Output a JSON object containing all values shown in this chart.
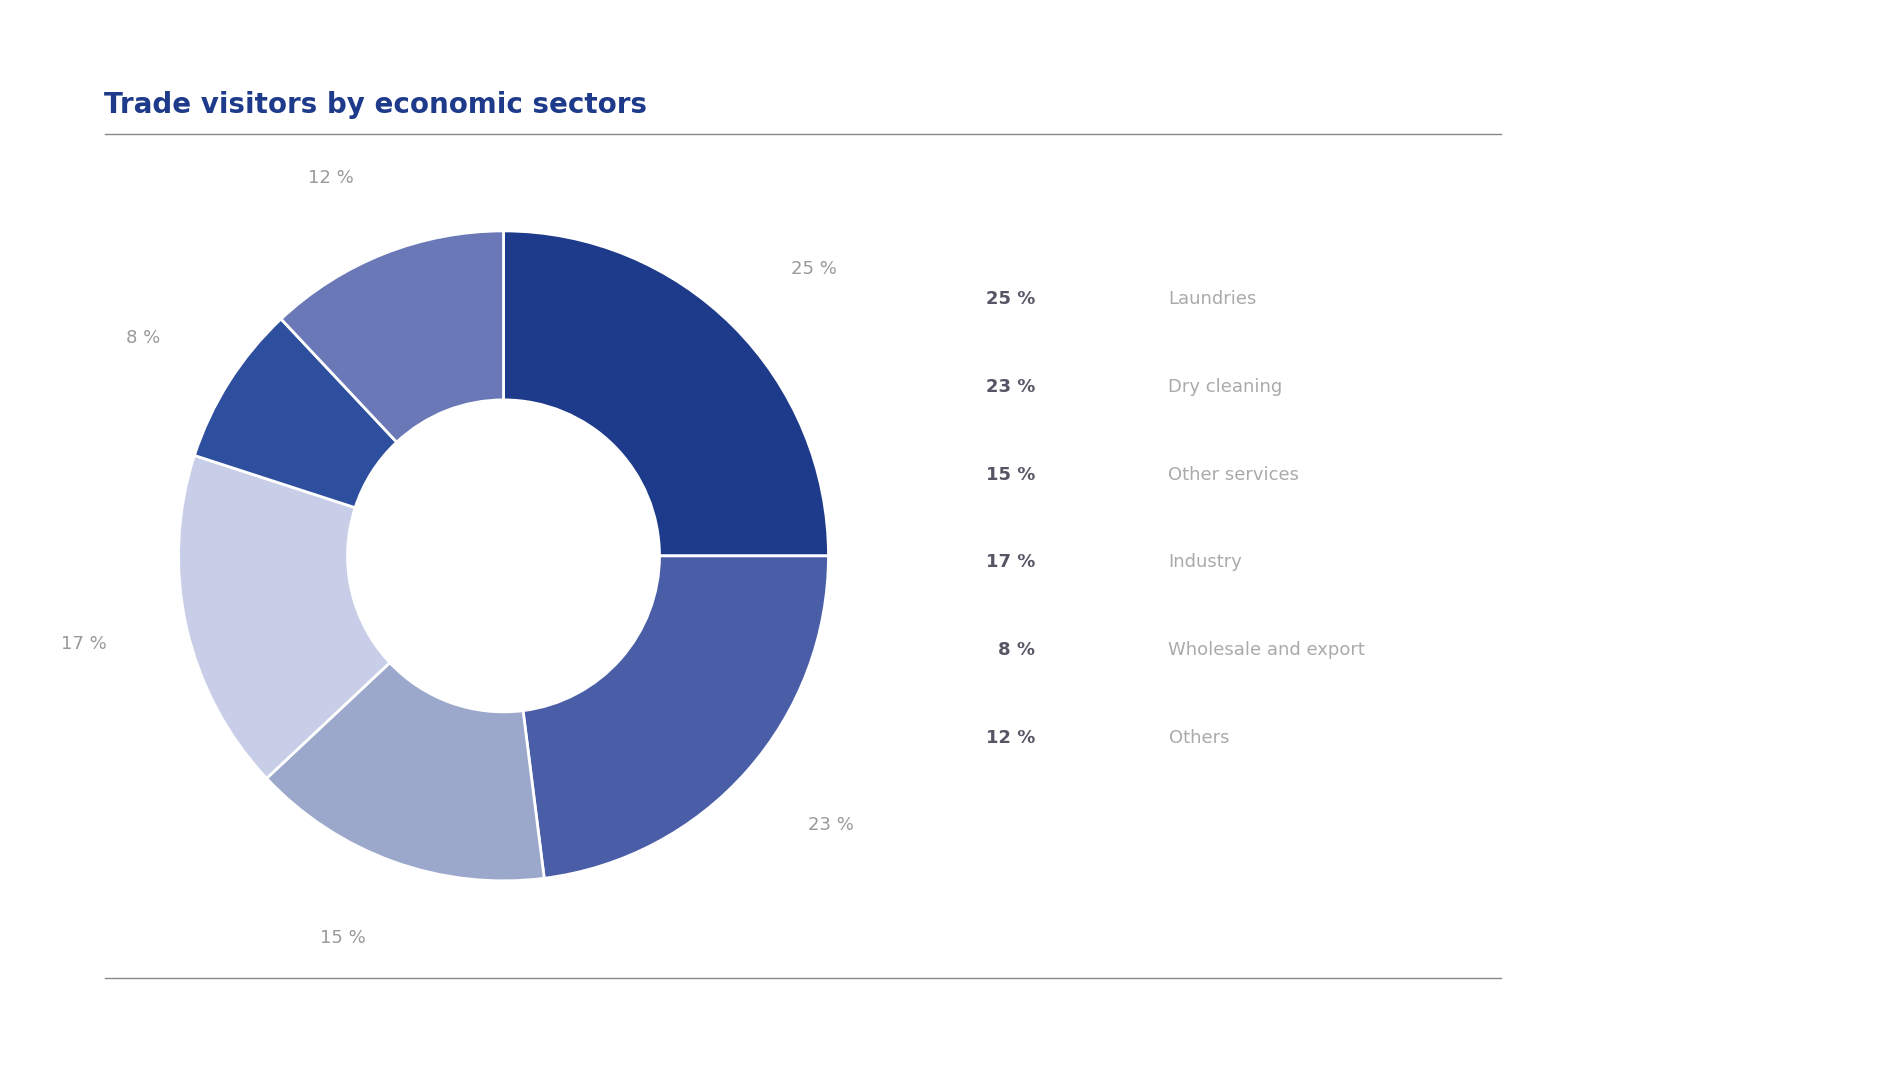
{
  "title": "Trade visitors by economic sectors",
  "title_color": "#1e3a8a",
  "background_color": "#ffffff",
  "slices": [
    {
      "label": "Laundries",
      "pct": 25,
      "color": "#1e3a8a"
    },
    {
      "label": "Dry cleaning",
      "pct": 23,
      "color": "#4a5ea8"
    },
    {
      "label": "Other services",
      "pct": 15,
      "color": "#9ba8cc"
    },
    {
      "label": "Industry",
      "pct": 17,
      "color": "#c8cde8"
    },
    {
      "label": "Wholesale and export",
      "pct": 8,
      "color": "#2e4f9e"
    },
    {
      "label": "Others",
      "pct": 12,
      "color": "#6b78b8"
    }
  ],
  "label_color": "#999999",
  "legend_pct_color": "#555566",
  "legend_label_color": "#aaaaaa",
  "line_color": "#888888",
  "title_fontsize": 20,
  "label_fontsize": 13,
  "legend_fontsize": 13
}
